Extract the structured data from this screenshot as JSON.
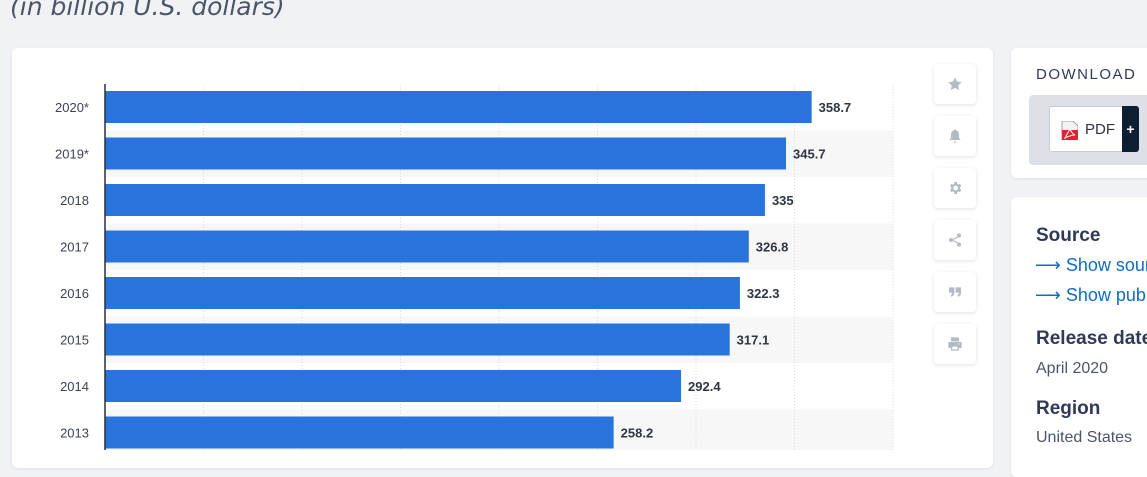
{
  "header": {
    "subtitle": "(in billion U.S. dollars)"
  },
  "toolbar": {
    "buttons": [
      "star-icon",
      "bell-icon",
      "gear-icon",
      "share-icon",
      "quote-icon",
      "print-icon"
    ]
  },
  "download": {
    "title": "DOWNLOAD",
    "pdf_label": "PDF",
    "plus_label": "+"
  },
  "info": {
    "source_heading": "Source",
    "show_source": "Show sour",
    "show_publisher": "Show pub",
    "release_heading": "Release date",
    "release_value": "April 2020",
    "region_heading": "Region",
    "region_value": "United States"
  },
  "colors": {
    "bar": "#2874dc",
    "link": "#0f6cc4"
  },
  "chart_data": {
    "type": "bar",
    "orientation": "horizontal",
    "categories": [
      "2020*",
      "2019*",
      "2018",
      "2017",
      "2016",
      "2015",
      "2014",
      "2013"
    ],
    "values": [
      358.7,
      345.7,
      335,
      326.8,
      322.3,
      317.1,
      292.4,
      258.2
    ],
    "value_labels": [
      "358.7",
      "345.7",
      "335",
      "326.8",
      "322.3",
      "317.1",
      "292.4",
      "258.2"
    ],
    "xlim": [
      0,
      400
    ],
    "grid": true
  }
}
